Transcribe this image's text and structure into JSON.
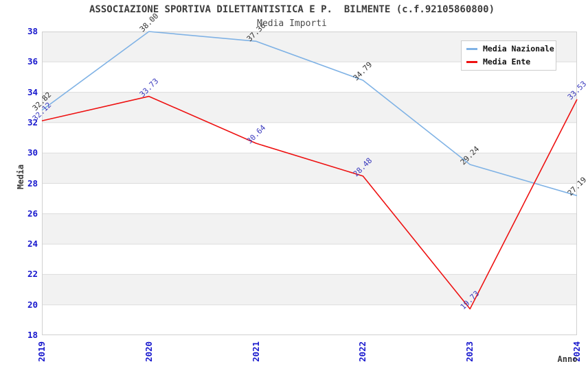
{
  "title": "ASSOCIAZIONE SPORTIVA DILETTANTISTICA E P.  BILMENTE (c.f.92105860800)",
  "subtitle": "Media Importi",
  "axes": {
    "x_label": "Anno",
    "y_label": "Media"
  },
  "colors": {
    "tick_label": "#1717CD",
    "grid_line": "#DCDCDC",
    "band_gray": "#F2F2F2",
    "band_white": "#FFFFFF",
    "plot_border": "#D0D0D0",
    "title_text": "#3C3C3C"
  },
  "chart_data": {
    "type": "line",
    "x": [
      "2019",
      "2020",
      "2021",
      "2022",
      "2023",
      "2024"
    ],
    "series": [
      {
        "name": "Media Nazionale",
        "color": "#7FB2E5",
        "label_color": "#333333",
        "values": [
          32.82,
          38.0,
          37.36,
          34.79,
          29.24,
          27.19
        ],
        "labels": [
          "32.82",
          "38.00",
          "37.36",
          "34.79",
          "29.24",
          "27.19"
        ]
      },
      {
        "name": "Media Ente",
        "color": "#EE1111",
        "label_color": "#3B3BBE",
        "values": [
          32.12,
          33.73,
          30.64,
          28.48,
          19.73,
          33.53
        ],
        "labels": [
          "32.12",
          "33.73",
          "30.64",
          "28.48",
          "19.73",
          "33.53"
        ]
      }
    ],
    "title": "Media Importi",
    "xlabel": "Anno",
    "ylabel": "Media",
    "ylim": [
      18,
      38
    ],
    "ytick_step": 2,
    "yticks": [
      18,
      20,
      22,
      24,
      26,
      28,
      30,
      32,
      34,
      36,
      38
    ],
    "grid": "horizontal-bands",
    "legend_position": "top-right",
    "point_label_rotation": -45,
    "tick_rotation_x": 90
  }
}
